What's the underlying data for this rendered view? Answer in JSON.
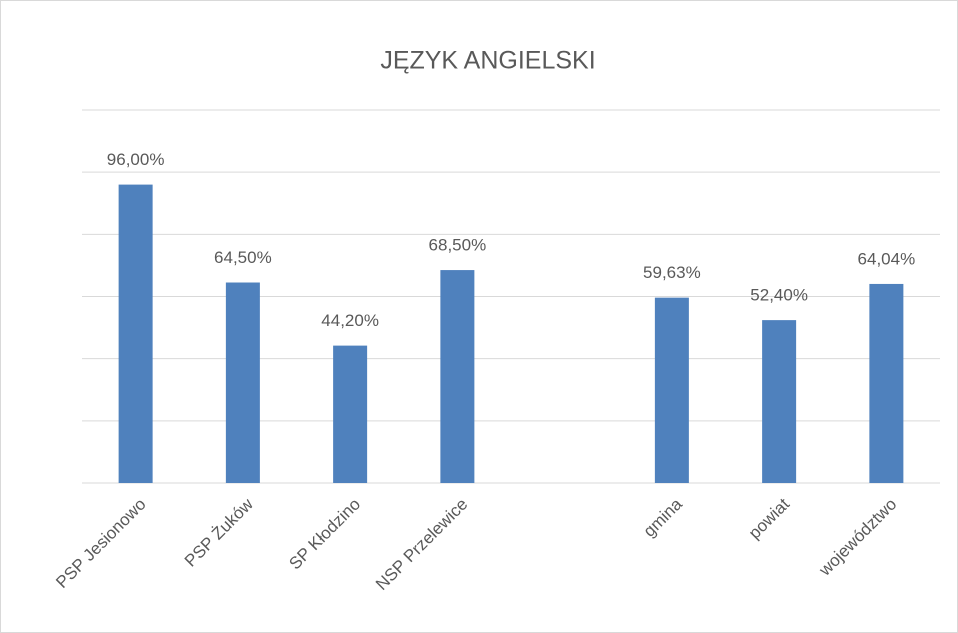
{
  "chart_data": {
    "type": "bar",
    "title": "JĘZYK ANGIELSKI",
    "categories": [
      "PSP Jesionowo",
      "PSP Żuków",
      "SP Kłodzino",
      "NSP Przelewice",
      null,
      "gmina",
      "powiat",
      "województwo"
    ],
    "values": [
      96.0,
      64.5,
      44.2,
      68.5,
      null,
      59.63,
      52.4,
      64.04
    ],
    "value_labels": [
      "96,00%",
      "64,50%",
      "44,20%",
      "68,50%",
      null,
      "59,63%",
      "52,40%",
      "64,04%"
    ],
    "color": "#4f81bd",
    "ylim": [
      0,
      120
    ],
    "yticks": [
      0,
      20,
      40,
      60,
      80,
      100,
      120
    ],
    "grid": true
  }
}
